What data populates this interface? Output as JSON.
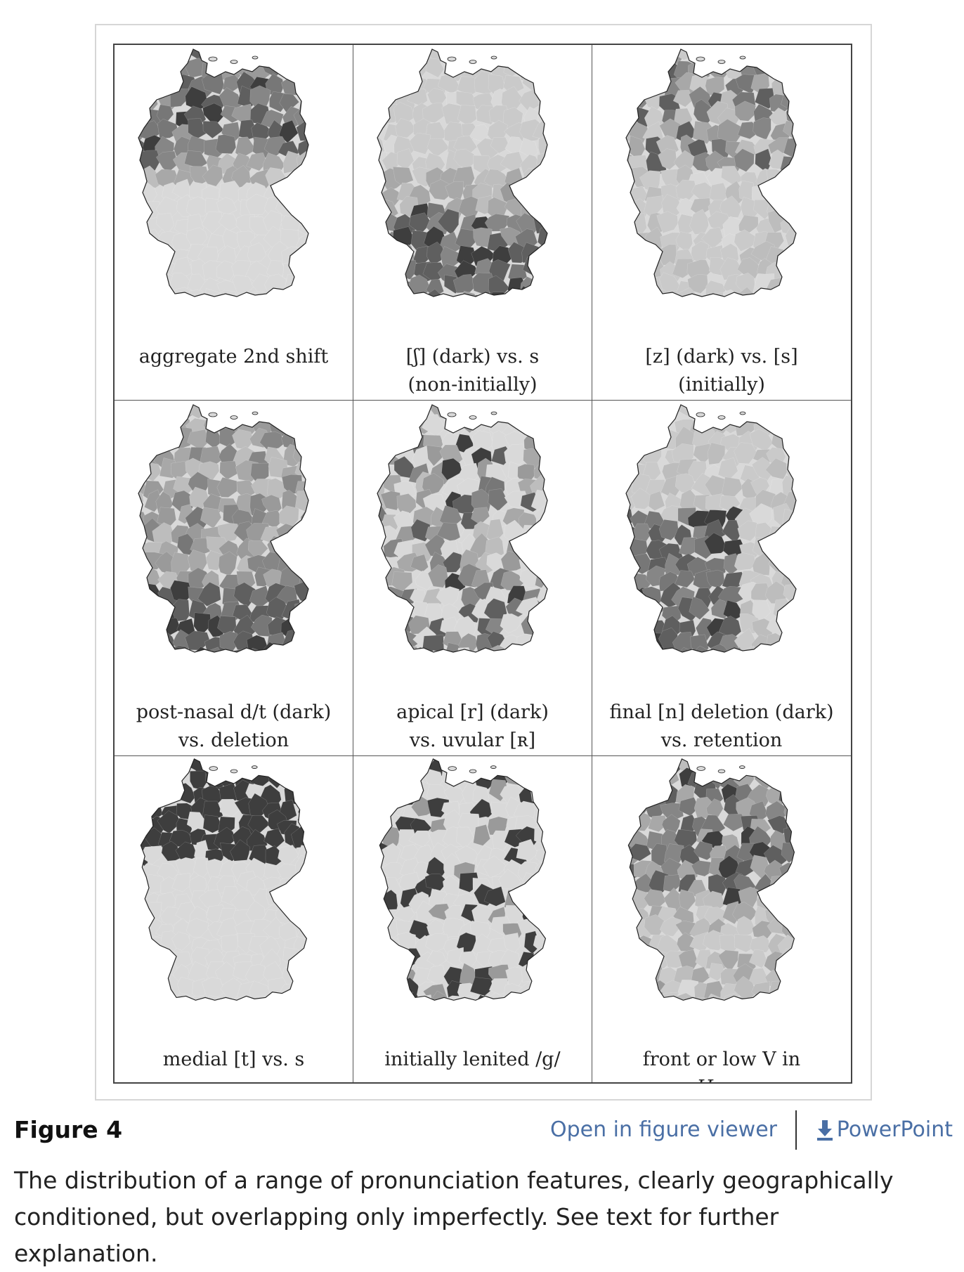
{
  "panels": [
    {
      "lines": [
        "aggregate 2nd shift"
      ],
      "pattern": "north-dark"
    },
    {
      "lines": [
        "[ʃ] (dark) vs. s",
        "(non-initially)"
      ],
      "pattern": "south-dark"
    },
    {
      "lines": [
        "[z] (dark) vs. [s]",
        "(initially)"
      ],
      "pattern": "north-mixed"
    },
    {
      "lines": [
        "post-nasal d/t (dark)",
        "vs. deletion"
      ],
      "pattern": "southwest-dark"
    },
    {
      "lines": [
        "apical [r] (dark)",
        "vs. uvular [ʀ]"
      ],
      "pattern": "scattered"
    },
    {
      "lines": [
        "final [n] deletion (dark)",
        "vs. retention"
      ],
      "pattern": "center-west-dark"
    },
    {
      "lines": [
        "medial [t] vs. s"
      ],
      "pattern": "north-band"
    },
    {
      "lines": [
        "initially lenited /g/"
      ],
      "pattern": "patches"
    },
    {
      "lines_prefix": "front or low V in ",
      "lines_italic": "Haus",
      "pattern": "north-mixed-dense"
    }
  ],
  "figure": {
    "label": "Figure 4",
    "open_viewer": "Open in figure viewer",
    "powerpoint": "PowerPoint",
    "download_icon": "download-icon",
    "caption": "The distribution of a range of pronunciation features, clearly geographically conditioned, but overlapping only imperfectly. See text for further explanation."
  },
  "colors": {
    "light": "#d9d9d9",
    "mid_light": "#bdbdbd",
    "mid": "#9a9a9a",
    "mid_dark": "#777777",
    "dark": "#3e3e3e",
    "link": "#4a6fa5"
  }
}
